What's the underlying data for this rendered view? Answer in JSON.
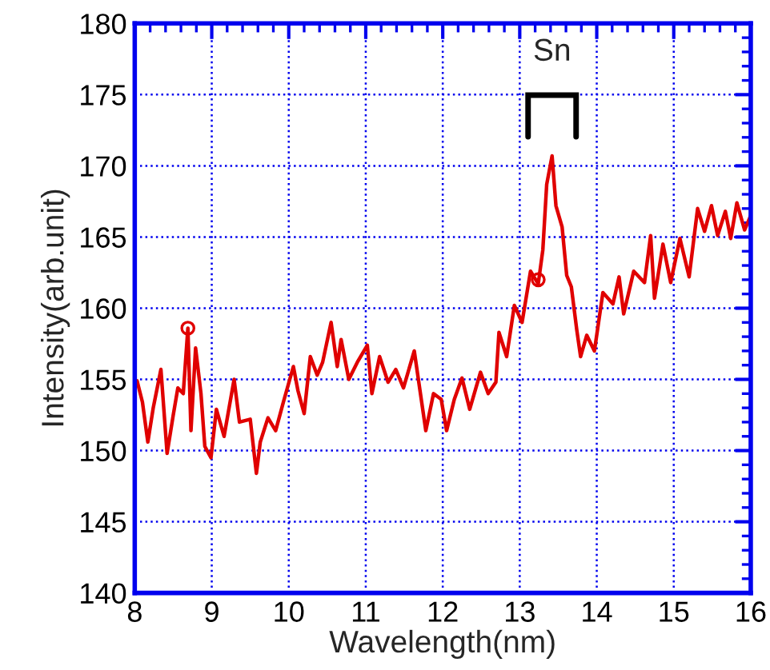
{
  "chart_data": {
    "type": "line",
    "xlabel": "Wavelength(nm)",
    "ylabel": "Intensity(arb.unit)",
    "xlim": [
      8,
      16
    ],
    "ylim": [
      140,
      180
    ],
    "xticks": [
      8,
      9,
      10,
      11,
      12,
      13,
      14,
      15,
      16
    ],
    "yticks": [
      140,
      145,
      150,
      155,
      160,
      165,
      170,
      175,
      180
    ],
    "grid": true,
    "line_style": "solid",
    "annotations": [
      "Sn"
    ],
    "series": [
      {
        "color": "#e00000",
        "x": [
          8.03,
          8.1,
          8.17,
          8.24,
          8.34,
          8.42,
          8.5,
          8.56,
          8.63,
          8.69,
          8.73,
          8.79,
          8.86,
          8.91,
          8.99,
          9.06,
          9.16,
          9.29,
          9.36,
          9.5,
          9.58,
          9.63,
          9.73,
          9.83,
          9.93,
          10.06,
          10.12,
          10.2,
          10.28,
          10.37,
          10.44,
          10.55,
          10.63,
          10.68,
          10.78,
          10.89,
          11.02,
          11.08,
          11.18,
          11.29,
          11.39,
          11.49,
          11.63,
          11.78,
          11.88,
          11.98,
          12.05,
          12.15,
          12.25,
          12.35,
          12.49,
          12.59,
          12.69,
          12.73,
          12.83,
          12.93,
          13.03,
          13.14,
          13.24,
          13.3,
          13.35,
          13.42,
          13.47,
          13.55,
          13.61,
          13.67,
          13.74,
          13.79,
          13.87,
          13.97,
          14.08,
          14.21,
          14.29,
          14.35,
          14.48,
          14.62,
          14.7,
          14.75,
          14.86,
          14.96,
          15.08,
          15.2,
          15.31,
          15.4,
          15.49,
          15.57,
          15.67,
          15.74,
          15.82,
          15.92,
          16.0
        ],
        "values": [
          154.9,
          153.4,
          150.6,
          153.0,
          155.7,
          149.8,
          152.5,
          154.4,
          154.0,
          158.6,
          151.4,
          157.2,
          154.0,
          150.3,
          149.5,
          152.9,
          151.0,
          155.0,
          152.0,
          152.2,
          148.4,
          150.6,
          152.3,
          151.4,
          153.4,
          155.9,
          154.2,
          152.6,
          156.6,
          155.3,
          156.2,
          159.0,
          155.9,
          157.8,
          155.0,
          156.2,
          157.4,
          154.0,
          156.6,
          154.8,
          155.7,
          154.4,
          157.0,
          151.4,
          154.0,
          153.6,
          151.4,
          153.6,
          155.1,
          152.9,
          155.5,
          154.0,
          154.8,
          158.3,
          156.6,
          160.2,
          159.0,
          162.6,
          161.7,
          164.1,
          168.7,
          170.7,
          167.2,
          165.7,
          162.3,
          161.5,
          158.5,
          156.6,
          158.1,
          157.0,
          161.1,
          160.3,
          162.2,
          159.6,
          162.6,
          161.8,
          165.1,
          160.7,
          164.5,
          161.8,
          164.9,
          162.2,
          167.0,
          165.4,
          167.2,
          165.1,
          166.8,
          164.9,
          167.4,
          165.5,
          166.5
        ]
      },
      {
        "type": "scatter",
        "color": "#e00000",
        "marker": "circle",
        "x": [
          8.69,
          13.24
        ],
        "values": [
          158.6,
          162.0
        ]
      }
    ]
  }
}
